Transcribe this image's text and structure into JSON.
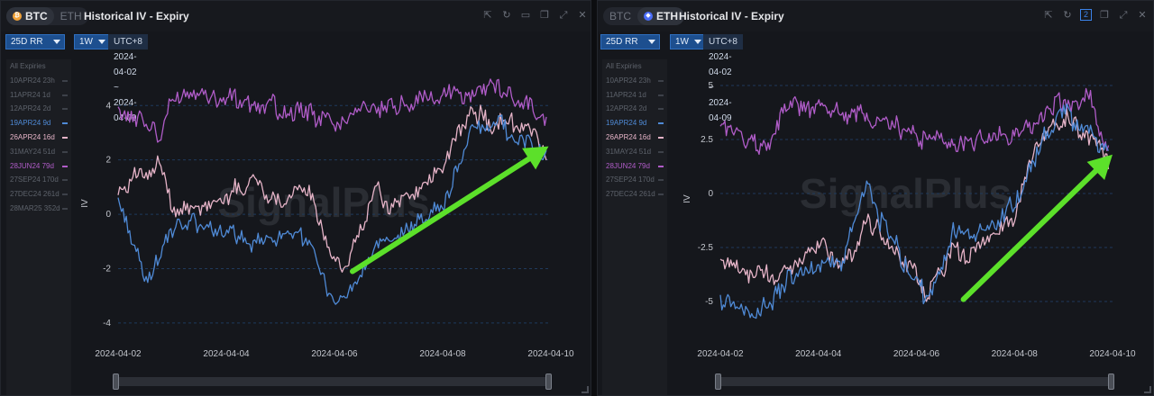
{
  "panels": [
    {
      "id": "btc",
      "coins": [
        "BTC",
        "ETH"
      ],
      "active_coin": "BTC",
      "title": "Historical IV - Expiry",
      "metric_select": "25D RR",
      "period_select": "1W",
      "date_range": "UTC+8 2024-04-02 ~ 2024-04-09",
      "legend_header": "All Expiries",
      "legend": [
        {
          "label": "10APR24 23h",
          "active": false,
          "color": "#5d626b"
        },
        {
          "label": "11APR24 1d",
          "active": false,
          "color": "#5d626b"
        },
        {
          "label": "12APR24 2d",
          "active": false,
          "color": "#5d626b"
        },
        {
          "label": "19APR24 9d",
          "active": true,
          "color": "#4f8ad6"
        },
        {
          "label": "26APR24 16d",
          "active": true,
          "color": "#e6b4c8"
        },
        {
          "label": "31MAY24 51d",
          "active": false,
          "color": "#5d626b"
        },
        {
          "label": "28JUN24 79d",
          "active": true,
          "color": "#b05cc8"
        },
        {
          "label": "27SEP24 170d",
          "active": false,
          "color": "#5d626b"
        },
        {
          "label": "27DEC24 261d",
          "active": false,
          "color": "#5d626b"
        },
        {
          "label": "28MAR25 352d",
          "active": false,
          "color": "#5d626b"
        }
      ],
      "watermark": "SignalPlus"
    },
    {
      "id": "eth",
      "coins": [
        "BTC",
        "ETH"
      ],
      "active_coin": "ETH",
      "title": "Historical IV - Expiry",
      "metric_select": "25D RR",
      "period_select": "1W",
      "date_range": "UTC+8 2024-04-02 ~ 2024-04-09",
      "layout_badge": "2",
      "legend_header": "All Expiries",
      "legend": [
        {
          "label": "10APR24 23h",
          "active": false,
          "color": "#5d626b"
        },
        {
          "label": "11APR24 1d",
          "active": false,
          "color": "#5d626b"
        },
        {
          "label": "12APR24 2d",
          "active": false,
          "color": "#5d626b"
        },
        {
          "label": "19APR24 9d",
          "active": true,
          "color": "#4f8ad6"
        },
        {
          "label": "26APR24 16d",
          "active": true,
          "color": "#e6b4c8"
        },
        {
          "label": "31MAY24 51d",
          "active": false,
          "color": "#5d626b"
        },
        {
          "label": "28JUN24 79d",
          "active": true,
          "color": "#b05cc8"
        },
        {
          "label": "27SEP24 170d",
          "active": false,
          "color": "#5d626b"
        },
        {
          "label": "27DEC24 261d",
          "active": false,
          "color": "#5d626b"
        }
      ],
      "watermark": "SignalPlus"
    }
  ],
  "chart_data": [
    {
      "type": "line",
      "ylabel": "IV",
      "ylim": [
        -4.4,
        5.2
      ],
      "yticks": [
        -4,
        -2,
        0,
        2,
        4
      ],
      "xlim": [
        "2024-04-02",
        "2024-04-10"
      ],
      "xticks": [
        "2024-04-02",
        "2024-04-04",
        "2024-04-06",
        "2024-04-08",
        "2024-04-10"
      ],
      "grid": "horizontal dashed",
      "series": [
        {
          "name": "28JUN24 79d",
          "color": "#b05cc8",
          "x": [
            "2024-04-02T00:00",
            "2024-04-02T12:00",
            "2024-04-02T18:00",
            "2024-04-03T00:00",
            "2024-04-03T12:00",
            "2024-04-04T00:00",
            "2024-04-04T12:00",
            "2024-04-05T00:00",
            "2024-04-05T12:00",
            "2024-04-06T00:00",
            "2024-04-06T12:00",
            "2024-04-07T00:00",
            "2024-04-07T12:00",
            "2024-04-08T00:00",
            "2024-04-08T12:00",
            "2024-04-09T00:00",
            "2024-04-09T12:00",
            "2024-04-09T22:00"
          ],
          "y": [
            3.7,
            3.5,
            2.8,
            4.3,
            4.4,
            4.2,
            4.1,
            3.9,
            3.7,
            3.3,
            3.8,
            3.9,
            4.1,
            4.5,
            4.4,
            4.8,
            4.1,
            3.5
          ]
        },
        {
          "name": "26APR24 16d",
          "color": "#e6b4c8",
          "x": [
            "2024-04-02T00:00",
            "2024-04-02T06:00",
            "2024-04-02T18:00",
            "2024-04-03T00:00",
            "2024-04-03T12:00",
            "2024-04-04T00:00",
            "2024-04-04T12:00",
            "2024-04-05T00:00",
            "2024-04-05T12:00",
            "2024-04-06T00:00",
            "2024-04-06T06:00",
            "2024-04-06T18:00",
            "2024-04-07T00:00",
            "2024-04-07T12:00",
            "2024-04-08T00:00",
            "2024-04-08T12:00",
            "2024-04-09T00:00",
            "2024-04-09T12:00",
            "2024-04-09T22:00"
          ],
          "y": [
            1.0,
            1.2,
            1.8,
            0.4,
            0.2,
            0.6,
            1.3,
            0.5,
            0.9,
            -1.8,
            -1.9,
            0.9,
            0.4,
            0.8,
            1.6,
            3.9,
            3.3,
            3.4,
            2.2
          ]
        },
        {
          "name": "19APR24 9d",
          "color": "#4f8ad6",
          "x": [
            "2024-04-02T00:00",
            "2024-04-02T06:00",
            "2024-04-02T12:00",
            "2024-04-02T18:00",
            "2024-04-03T00:00",
            "2024-04-03T12:00",
            "2024-04-04T00:00",
            "2024-04-04T12:00",
            "2024-04-05T00:00",
            "2024-04-05T12:00",
            "2024-04-06T00:00",
            "2024-04-06T06:00",
            "2024-04-06T18:00",
            "2024-04-07T00:00",
            "2024-04-07T12:00",
            "2024-04-08T00:00",
            "2024-04-08T12:00",
            "2024-04-09T00:00",
            "2024-04-09T12:00",
            "2024-04-09T22:00"
          ],
          "y": [
            0.6,
            -1.0,
            -2.5,
            -1.4,
            -0.5,
            -0.3,
            -0.8,
            -1.0,
            -0.7,
            -0.8,
            -3.4,
            -2.9,
            -1.2,
            -1.3,
            -0.2,
            0.2,
            3.0,
            3.4,
            2.7,
            2.0
          ]
        }
      ]
    },
    {
      "type": "line",
      "ylabel": "IV",
      "ylim": [
        -6.5,
        6
      ],
      "yticks": [
        -5,
        -2.5,
        0,
        2.5,
        5
      ],
      "xlim": [
        "2024-04-02",
        "2024-04-10"
      ],
      "xticks": [
        "2024-04-02",
        "2024-04-04",
        "2024-04-06",
        "2024-04-08",
        "2024-04-10"
      ],
      "grid": "horizontal dashed",
      "series": [
        {
          "name": "28JUN24 79d",
          "color": "#b05cc8",
          "x": [
            "2024-04-02T00:00",
            "2024-04-02T12:00",
            "2024-04-03T00:00",
            "2024-04-03T06:00",
            "2024-04-03T12:00",
            "2024-04-04T00:00",
            "2024-04-04T12:00",
            "2024-04-05T00:00",
            "2024-04-05T12:00",
            "2024-04-06T00:00",
            "2024-04-06T12:00",
            "2024-04-07T00:00",
            "2024-04-07T12:00",
            "2024-04-08T00:00",
            "2024-04-08T12:00",
            "2024-04-09T00:00",
            "2024-04-09T12:00",
            "2024-04-09T22:00"
          ],
          "y": [
            3.2,
            2.6,
            2.2,
            3.6,
            3.9,
            4.0,
            3.8,
            3.6,
            3.1,
            2.6,
            2.4,
            2.3,
            2.5,
            2.8,
            3.4,
            4.2,
            4.6,
            2.0
          ]
        },
        {
          "name": "26APR24 16d",
          "color": "#e6b4c8",
          "x": [
            "2024-04-02T00:00",
            "2024-04-02T12:00",
            "2024-04-03T00:00",
            "2024-04-03T12:00",
            "2024-04-04T00:00",
            "2024-04-04T12:00",
            "2024-04-05T00:00",
            "2024-04-05T12:00",
            "2024-04-06T00:00",
            "2024-04-06T06:00",
            "2024-04-06T18:00",
            "2024-04-07T00:00",
            "2024-04-07T12:00",
            "2024-04-08T00:00",
            "2024-04-08T12:00",
            "2024-04-09T00:00",
            "2024-04-09T12:00",
            "2024-04-09T22:00"
          ],
          "y": [
            -3.0,
            -3.6,
            -3.8,
            -3.3,
            -2.4,
            -3.4,
            -1.2,
            -2.6,
            -3.8,
            -4.8,
            -2.4,
            -2.8,
            -2.0,
            -1.2,
            2.8,
            3.5,
            2.8,
            1.5
          ]
        },
        {
          "name": "19APR24 9d",
          "color": "#4f8ad6",
          "x": [
            "2024-04-02T00:00",
            "2024-04-02T12:00",
            "2024-04-03T00:00",
            "2024-04-03T12:00",
            "2024-04-04T00:00",
            "2024-04-04T12:00",
            "2024-04-05T00:00",
            "2024-04-05T06:00",
            "2024-04-05T12:00",
            "2024-04-06T00:00",
            "2024-04-06T06:00",
            "2024-04-06T18:00",
            "2024-04-07T00:00",
            "2024-04-07T12:00",
            "2024-04-08T00:00",
            "2024-04-08T12:00",
            "2024-04-09T00:00",
            "2024-04-09T12:00",
            "2024-04-09T22:00"
          ],
          "y": [
            -5.0,
            -5.4,
            -5.0,
            -3.8,
            -3.5,
            -3.0,
            0.8,
            -1.2,
            -2.0,
            -4.2,
            -5.0,
            -1.8,
            -2.2,
            -1.5,
            -0.5,
            2.2,
            3.8,
            3.0,
            1.8
          ]
        }
      ]
    }
  ],
  "annotations": [
    {
      "type": "arrow",
      "color": "#5ce02a",
      "from_x": "2024-04-06T08:00",
      "from_y": -2.1,
      "to_x": "2024-04-09T23:00",
      "to_y": 2.5
    },
    {
      "type": "arrow",
      "color": "#5ce02a",
      "from_x": "2024-04-06T23:00",
      "from_y": -4.9,
      "to_x": "2024-04-10T00:00",
      "to_y": 1.8
    }
  ]
}
